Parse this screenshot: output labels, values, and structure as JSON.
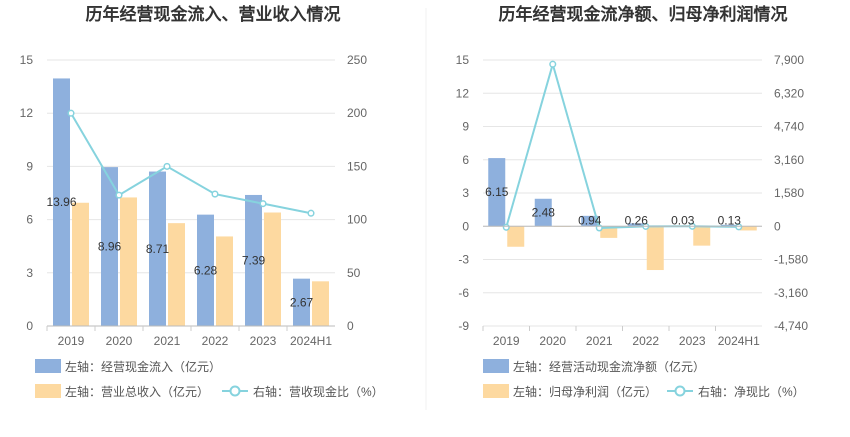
{
  "chart_data": [
    {
      "type": "bar",
      "title": "历年经营现金流入、营业收入情况",
      "categories": [
        "2019",
        "2020",
        "2021",
        "2022",
        "2023",
        "2024H1"
      ],
      "left_axis": {
        "ylim": [
          0,
          15
        ],
        "ticks": [
          "0",
          "3",
          "6",
          "9",
          "12",
          "15"
        ]
      },
      "right_axis": {
        "ylim": [
          0,
          250
        ],
        "ticks": [
          "0",
          "50",
          "100",
          "150",
          "200",
          "250"
        ]
      },
      "series": [
        {
          "name": "左轴：经营现金流入（亿元）",
          "kind": "bar",
          "axis": "left",
          "color": "#8eb0dd",
          "values": [
            13.96,
            8.96,
            8.71,
            6.28,
            7.39,
            2.67
          ],
          "labels": [
            "13.96",
            "8.96",
            "8.71",
            "6.28",
            "7.39",
            "2.67"
          ]
        },
        {
          "name": "左轴：营业总收入（亿元）",
          "kind": "bar",
          "axis": "left",
          "color": "#fdd9a0",
          "values": [
            6.95,
            7.25,
            5.8,
            5.05,
            6.4,
            2.52
          ]
        },
        {
          "name": "右轴：营收现金比（%）",
          "kind": "line",
          "axis": "right",
          "color": "#86d3de",
          "values": [
            200,
            123,
            150,
            124,
            115,
            106
          ]
        }
      ],
      "grid": true,
      "legend": "bottom"
    },
    {
      "type": "bar",
      "title": "历年经营现金流净额、归母净利润情况",
      "categories": [
        "2019",
        "2020",
        "2021",
        "2022",
        "2023",
        "2024H1"
      ],
      "left_axis": {
        "ylim": [
          -9,
          15
        ],
        "ticks": [
          "-9",
          "-6",
          "-3",
          "0",
          "3",
          "6",
          "9",
          "12",
          "15"
        ]
      },
      "right_axis": {
        "ylim": [
          -4740,
          7900
        ],
        "ticks": [
          "-4,740",
          "-3,160",
          "-1,580",
          "0",
          "1,580",
          "3,160",
          "4,740",
          "6,320",
          "7,900"
        ]
      },
      "series": [
        {
          "name": "左轴：经营活动现金流净额（亿元）",
          "kind": "bar",
          "axis": "left",
          "color": "#8eb0dd",
          "values": [
            6.15,
            2.48,
            0.94,
            0.26,
            0.03,
            0.13
          ],
          "labels": [
            "6.15",
            "2.48",
            "0.94",
            "0.26",
            "0.03",
            "0.13"
          ]
        },
        {
          "name": "左轴：归母净利润（亿元）",
          "kind": "bar",
          "axis": "left",
          "color": "#fdd9a0",
          "values": [
            -1.85,
            -0.05,
            -1.05,
            -3.95,
            -1.75,
            -0.38
          ]
        },
        {
          "name": "右轴：净现比（%）",
          "kind": "line",
          "axis": "right",
          "color": "#86d3de",
          "values": [
            -50,
            7700,
            -80,
            -7,
            -2,
            -30
          ]
        }
      ],
      "grid": true,
      "legend": "bottom"
    }
  ]
}
